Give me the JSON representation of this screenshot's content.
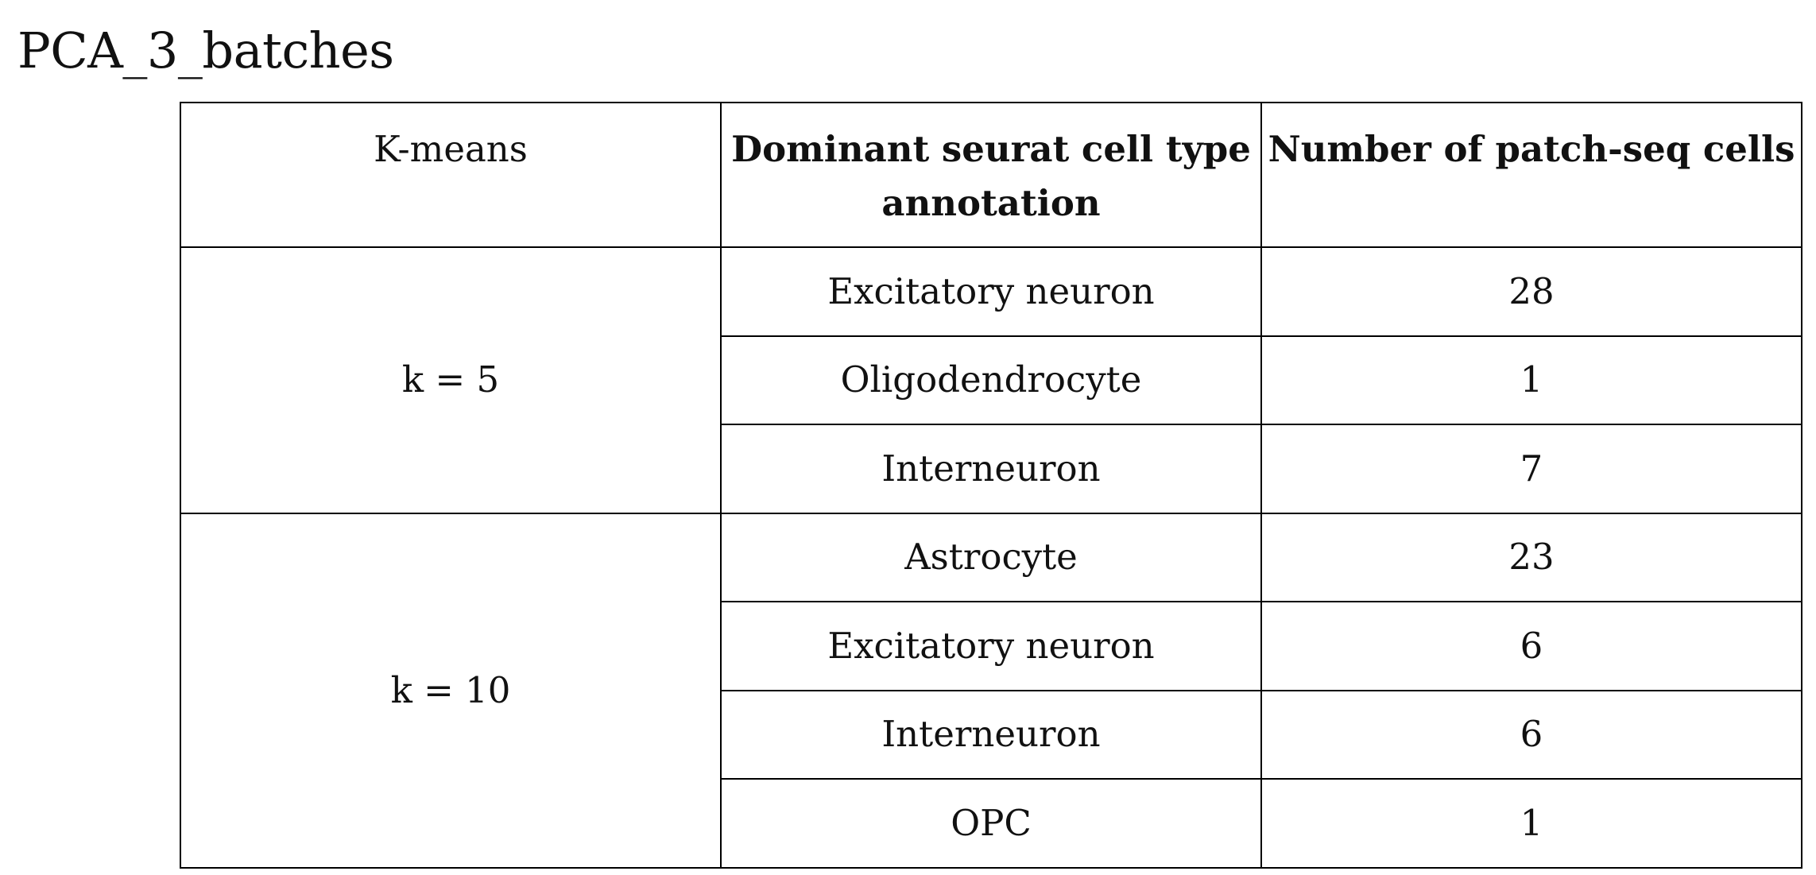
{
  "title": "PCA_3_batches",
  "table": {
    "headers": [
      "K-means",
      "Dominant seurat cell type annotation",
      "Number of patch-seq cells"
    ],
    "groups": [
      {
        "label": "k = 5",
        "rows": [
          {
            "cell_type": "Excitatory neuron",
            "count": "28"
          },
          {
            "cell_type": "Oligodendrocyte",
            "count": "1"
          },
          {
            "cell_type": "Interneuron",
            "count": "7"
          }
        ]
      },
      {
        "label": "k = 10",
        "rows": [
          {
            "cell_type": "Astrocyte",
            "count": "23"
          },
          {
            "cell_type": "Excitatory neuron",
            "count": "6"
          },
          {
            "cell_type": "Interneuron",
            "count": "6"
          },
          {
            "cell_type": "OPC",
            "count": "1"
          }
        ]
      }
    ]
  }
}
